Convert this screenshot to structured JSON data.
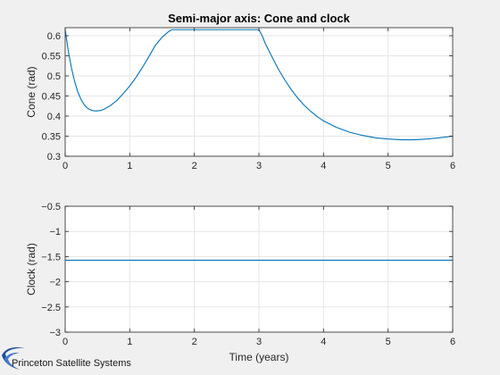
{
  "chart_data": [
    {
      "type": "line",
      "title": "Semi-major axis: Cone and clock",
      "xlabel": "",
      "ylabel": "Cone (rad)",
      "xlim": [
        0,
        6
      ],
      "ylim": [
        0.3,
        0.62
      ],
      "xticks": [
        0,
        1,
        2,
        3,
        4,
        5,
        6
      ],
      "yticks": [
        0.3,
        0.35,
        0.4,
        0.45,
        0.5,
        0.55,
        0.6
      ],
      "grid": true,
      "series": [
        {
          "color": "#0072BD",
          "x": [
            0,
            0.05,
            0.1,
            0.15,
            0.2,
            0.25,
            0.3,
            0.35,
            0.4,
            0.45,
            0.5,
            0.55,
            0.6,
            0.7,
            0.8,
            0.9,
            1.0,
            1.1,
            1.2,
            1.3,
            1.4,
            1.5,
            1.6,
            1.65,
            3.0,
            3.05,
            3.1,
            3.2,
            3.3,
            3.4,
            3.5,
            3.6,
            3.7,
            3.8,
            3.9,
            4.0,
            4.2,
            4.4,
            4.6,
            4.8,
            5.0,
            5.2,
            5.4,
            5.6,
            5.8,
            6.0
          ],
          "y": [
            0.615,
            0.56,
            0.518,
            0.484,
            0.458,
            0.44,
            0.427,
            0.419,
            0.415,
            0.413,
            0.413,
            0.414,
            0.417,
            0.426,
            0.439,
            0.456,
            0.475,
            0.497,
            0.522,
            0.549,
            0.577,
            0.596,
            0.61,
            0.615,
            0.615,
            0.6,
            0.58,
            0.548,
            0.517,
            0.49,
            0.466,
            0.445,
            0.427,
            0.412,
            0.399,
            0.388,
            0.372,
            0.36,
            0.352,
            0.346,
            0.343,
            0.341,
            0.341,
            0.343,
            0.346,
            0.35
          ]
        }
      ]
    },
    {
      "type": "line",
      "title": "",
      "xlabel": "Time (years)",
      "ylabel": "Clock (rad)",
      "xlim": [
        0,
        6
      ],
      "ylim": [
        -3,
        -0.5
      ],
      "xticks": [
        0,
        1,
        2,
        3,
        4,
        5,
        6
      ],
      "yticks": [
        -3,
        -2.5,
        -2,
        -1.5,
        -1,
        -0.5
      ],
      "grid": true,
      "series": [
        {
          "color": "#0072BD",
          "x": [
            0,
            6
          ],
          "y": [
            -1.5708,
            -1.5708
          ]
        }
      ]
    }
  ],
  "footer": {
    "company": "Princeton Satellite Systems",
    "logo_color": "#1f4e9c"
  }
}
